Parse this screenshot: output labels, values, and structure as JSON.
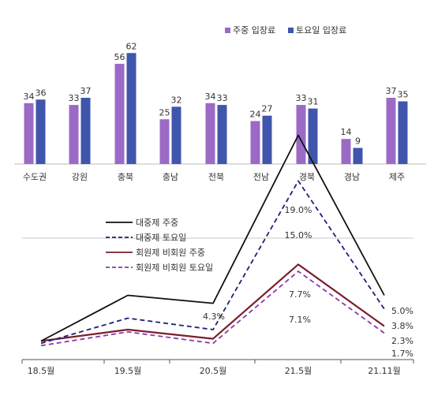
{
  "chart_data": [
    {
      "type": "bar",
      "categories": [
        "수도권",
        "강원",
        "충북",
        "충남",
        "전북",
        "전남",
        "경북",
        "경남",
        "제주"
      ],
      "series": [
        {
          "name": "주중 입장료",
          "values": [
            34,
            33,
            56,
            25,
            34,
            24,
            33,
            14,
            37
          ]
        },
        {
          "name": "토요일 입장료",
          "values": [
            36,
            37,
            62,
            32,
            33,
            27,
            31,
            9,
            35
          ]
        }
      ],
      "ylim": [
        0,
        65
      ],
      "grid": false,
      "legend_position": "top-right"
    },
    {
      "type": "line",
      "x": [
        "18.5월",
        "19.5월",
        "20.5월",
        "21.5월",
        "21.11월"
      ],
      "series": [
        {
          "name": "대중제 주중",
          "values": [
            1.0,
            5.0,
            4.3,
            19.0,
            5.0
          ]
        },
        {
          "name": "대중제 토요일",
          "values": [
            0.8,
            3.0,
            2.0,
            15.0,
            3.8
          ]
        },
        {
          "name": "회원제 비회원 주중",
          "values": [
            1.0,
            2.0,
            1.2,
            7.7,
            2.3
          ]
        },
        {
          "name": "회원제 비회원 토요일",
          "values": [
            0.6,
            1.8,
            0.8,
            7.1,
            1.7
          ]
        }
      ],
      "data_labels": [
        {
          "series": 0,
          "index": 2,
          "text": "4.3%"
        },
        {
          "series": 0,
          "index": 3,
          "text": "19.0%"
        },
        {
          "series": 1,
          "index": 3,
          "text": "15.0%"
        },
        {
          "series": 2,
          "index": 3,
          "text": "7.7%"
        },
        {
          "series": 3,
          "index": 3,
          "text": "7.1%"
        },
        {
          "series": 0,
          "index": 4,
          "text": "5.0%"
        },
        {
          "series": 1,
          "index": 4,
          "text": "3.8%"
        },
        {
          "series": 2,
          "index": 4,
          "text": "2.3%"
        },
        {
          "series": 3,
          "index": 4,
          "text": "1.7%"
        }
      ],
      "ylim": [
        0,
        20
      ],
      "reference_line": 10,
      "legend_position": "top-left",
      "colors": [
        "#111111",
        "#1f1f7a",
        "#7a1e2c",
        "#8a3aa8"
      ],
      "dashes": [
        "solid",
        "dashed",
        "solid",
        "dashed"
      ]
    }
  ],
  "colors": {
    "bar_series_1": "#9b6ac6",
    "bar_series_2": "#3f56ac"
  }
}
